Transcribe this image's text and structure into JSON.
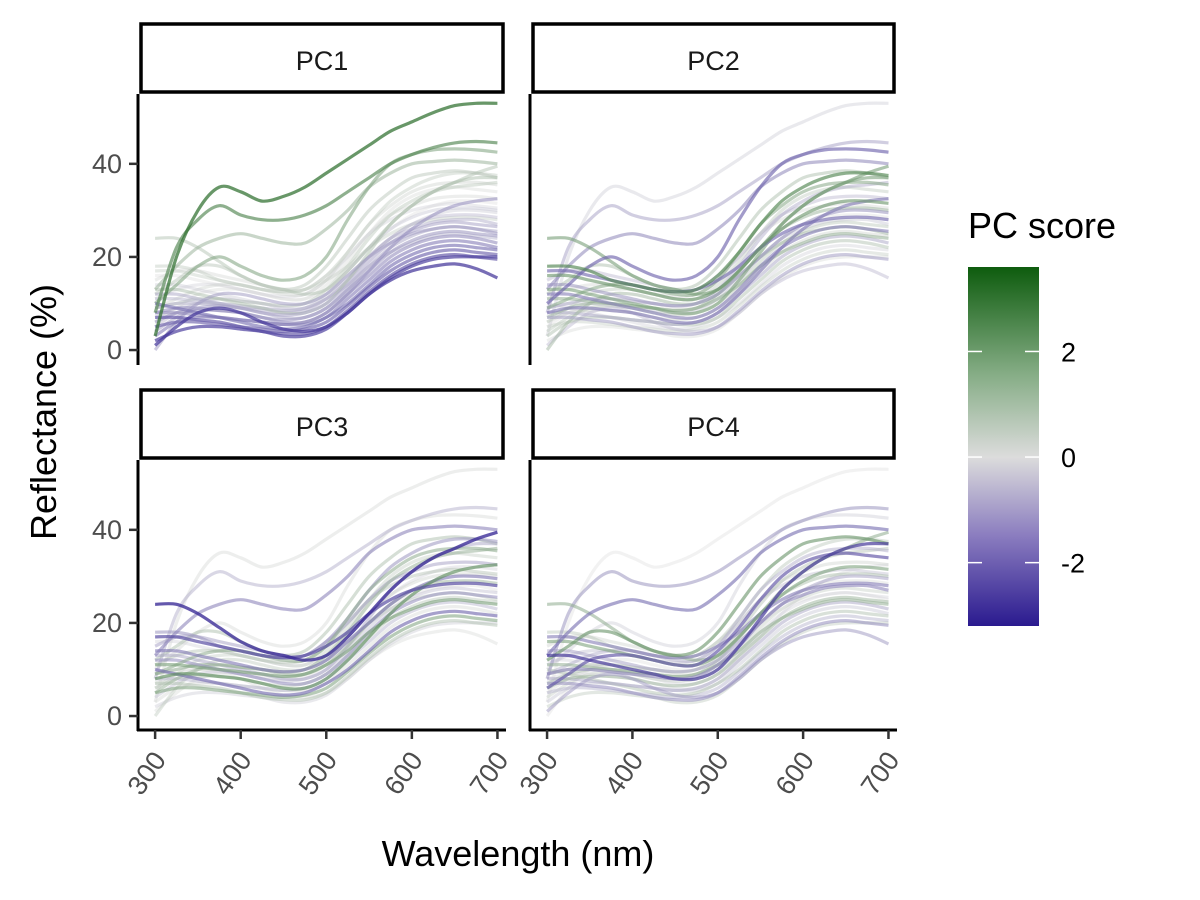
{
  "chart_data": {
    "type": "line",
    "xlabel": "Wavelength (nm)",
    "ylabel": "Reflectance (%)",
    "xlim": [
      280,
      710
    ],
    "ylim": [
      -3,
      55
    ],
    "x_ticks": [
      "300",
      "400",
      "500",
      "600",
      "700"
    ],
    "y_ticks": [
      "0",
      "20",
      "40"
    ],
    "panels": [
      {
        "label": "PC1"
      },
      {
        "label": "PC2"
      },
      {
        "label": "PC3"
      },
      {
        "label": "PC4"
      }
    ],
    "legend": {
      "title": "PC score",
      "position": "right",
      "range": [
        -3.2,
        3.6
      ],
      "ticks": [
        "2",
        "0",
        "-2"
      ],
      "colors": {
        "low": "#2a1a8f",
        "mid": "#dcdcdc",
        "high": "#0e5c0e"
      }
    },
    "wavelengths": [
      300,
      325,
      350,
      375,
      400,
      425,
      450,
      475,
      500,
      525,
      550,
      575,
      600,
      625,
      650,
      675,
      700
    ],
    "curves": [
      {
        "y": [
          3,
          20,
          30,
          35,
          34,
          32,
          33,
          35,
          38,
          41,
          44,
          47,
          49,
          51,
          52.5,
          53,
          53
        ],
        "scores": [
          3.0,
          -0.3,
          0.2,
          0.0
        ]
      },
      {
        "y": [
          8,
          22,
          28,
          31,
          29,
          28,
          28,
          29,
          31,
          34,
          37,
          40,
          42,
          43.5,
          44.5,
          44.8,
          44.5
        ],
        "scores": [
          2.4,
          -1.0,
          -0.8,
          -1.2
        ]
      },
      {
        "y": [
          10,
          14,
          18,
          20,
          18,
          16,
          15,
          16,
          20,
          28,
          35,
          40,
          42,
          43,
          43.2,
          43,
          42.5
        ],
        "scores": [
          1.6,
          -2.0,
          0.2,
          -0.3
        ]
      },
      {
        "y": [
          13,
          18,
          22,
          24,
          25,
          24,
          23,
          23,
          26,
          30,
          35,
          38,
          40,
          40.5,
          40.8,
          40.5,
          40
        ],
        "scores": [
          1.2,
          -1.4,
          -1.5,
          -1.8
        ]
      },
      {
        "y": [
          24,
          24,
          22,
          19,
          16,
          14,
          13,
          12,
          13,
          17,
          22,
          27,
          31,
          34,
          36,
          38,
          39.5
        ],
        "scores": [
          0.8,
          1.8,
          -3.0,
          1.4
        ]
      },
      {
        "y": [
          18,
          18,
          17,
          15,
          14,
          13,
          12.5,
          13,
          16,
          21,
          27,
          32,
          35,
          37,
          38,
          38,
          37.5
        ],
        "scores": [
          0.5,
          2.4,
          -1.2,
          0.6
        ]
      },
      {
        "y": [
          12,
          15,
          18,
          18,
          16,
          14,
          13,
          14,
          18,
          24,
          30,
          34,
          37,
          38,
          38.5,
          38,
          37
        ],
        "scores": [
          0.7,
          0.9,
          0.9,
          2.0
        ]
      },
      {
        "y": [
          9,
          11,
          13,
          14,
          14,
          13,
          12,
          12,
          15,
          21,
          27,
          31,
          34,
          35.5,
          36,
          36,
          35.5
        ],
        "scores": [
          0.3,
          1.5,
          1.4,
          -0.8
        ]
      },
      {
        "y": [
          6,
          9,
          12,
          13,
          13,
          12,
          11,
          11,
          14,
          19,
          25,
          30,
          33,
          34.5,
          35,
          34.5,
          34
        ],
        "scores": [
          0.1,
          0.5,
          0.4,
          -2.2
        ]
      },
      {
        "y": [
          15,
          17,
          17,
          16,
          15,
          14,
          13,
          13,
          16,
          20,
          25,
          29,
          31,
          32.5,
          33,
          33,
          32.5
        ],
        "scores": [
          0.2,
          -0.6,
          -1.0,
          0.3
        ]
      },
      {
        "y": [
          11,
          13,
          14,
          14,
          13,
          12,
          11.5,
          12,
          15,
          20,
          25,
          28,
          30,
          31,
          31.5,
          31,
          30.5
        ],
        "scores": [
          -0.2,
          0.2,
          0.7,
          -0.5
        ]
      },
      {
        "y": [
          7,
          9,
          10,
          10,
          9.5,
          9,
          8.5,
          9,
          12,
          17,
          22,
          26,
          28.5,
          30,
          30.5,
          30.5,
          30
        ],
        "scores": [
          -0.4,
          1.1,
          0.3,
          0.9
        ]
      },
      {
        "y": [
          14,
          14,
          13,
          12,
          11,
          10,
          9.5,
          10,
          12,
          16,
          20,
          24,
          27,
          29,
          30,
          30,
          29.5
        ],
        "scores": [
          -0.3,
          -1.2,
          -1.7,
          -1.0
        ]
      },
      {
        "y": [
          5,
          8,
          10,
          11,
          10.5,
          10,
          9,
          9,
          11,
          15,
          20,
          24,
          27,
          28.5,
          29,
          29,
          28.5
        ],
        "scores": [
          -0.6,
          0.0,
          1.1,
          0.1
        ]
      },
      {
        "y": [
          9,
          10,
          10,
          9.5,
          9,
          8.5,
          8,
          8.5,
          11,
          15,
          20,
          24,
          26,
          27.5,
          28,
          28,
          27
        ],
        "scores": [
          -0.8,
          -0.4,
          0.0,
          -1.5
        ]
      },
      {
        "y": [
          4,
          7,
          9,
          9.5,
          9,
          8,
          7.5,
          8,
          10,
          14,
          19,
          23,
          25.5,
          27,
          27.5,
          27,
          26.5
        ],
        "scores": [
          -1.0,
          0.6,
          -0.5,
          0.4
        ]
      },
      {
        "y": [
          12,
          12,
          11,
          10,
          9,
          8,
          7,
          7,
          9,
          13,
          18,
          22,
          24.5,
          26,
          26.5,
          26,
          25.5
        ],
        "scores": [
          -0.9,
          -1.6,
          -1.3,
          -0.2
        ]
      },
      {
        "y": [
          6,
          8,
          8.5,
          8.5,
          8,
          7,
          6.5,
          7,
          9,
          13,
          17,
          21,
          23.5,
          25,
          25.5,
          25,
          24.5
        ],
        "scores": [
          -1.2,
          0.3,
          0.6,
          1.1
        ]
      },
      {
        "y": [
          8,
          8,
          7.5,
          7,
          6.5,
          6,
          5.5,
          6,
          8,
          12,
          16,
          20,
          22.5,
          24,
          24.5,
          24,
          23
        ],
        "scores": [
          -1.4,
          -0.9,
          -0.7,
          -0.9
        ]
      },
      {
        "y": [
          3,
          6,
          7,
          7,
          6.5,
          6,
          5.5,
          5.5,
          7,
          11,
          15,
          19,
          21.5,
          23,
          23.5,
          23,
          22
        ],
        "scores": [
          -1.6,
          0.8,
          0.2,
          -0.4
        ]
      },
      {
        "y": [
          10,
          9,
          8,
          7,
          6,
          5,
          4.5,
          5,
          7,
          10,
          14,
          18,
          20.5,
          22,
          22.5,
          22,
          21.5
        ],
        "scores": [
          -1.8,
          -0.2,
          -1.9,
          0.8
        ]
      },
      {
        "y": [
          5,
          6,
          6,
          5.5,
          5,
          4.5,
          4,
          4.5,
          6,
          9.5,
          13.5,
          17,
          19.5,
          21,
          21.5,
          21,
          20.5
        ],
        "scores": [
          -2.0,
          0.4,
          1.6,
          -0.7
        ]
      },
      {
        "y": [
          7,
          7,
          6.5,
          6,
          5,
          4,
          3.5,
          3.5,
          5,
          8.5,
          12.5,
          16,
          18.5,
          20,
          20.5,
          20,
          19.5
        ],
        "scores": [
          -2.2,
          -1.1,
          0.8,
          -1.3
        ]
      },
      {
        "y": [
          2,
          4,
          5,
          5,
          4.5,
          4,
          3,
          3,
          4.5,
          8,
          12,
          15.5,
          18,
          19.5,
          20,
          20,
          20
        ],
        "scores": [
          -2.5,
          0.1,
          -0.3,
          0.5
        ]
      },
      {
        "y": [
          1,
          5,
          8,
          9,
          8,
          6,
          4.5,
          4,
          5,
          8,
          12,
          15,
          17,
          18,
          18.5,
          17.5,
          15.5
        ],
        "scores": [
          -2.7,
          -0.6,
          0.1,
          -1.1
        ]
      },
      {
        "y": [
          16,
          16,
          15,
          14,
          13,
          12,
          11,
          11,
          13,
          17,
          22,
          26,
          29,
          31,
          32,
          32,
          31.5
        ],
        "scores": [
          0.0,
          2.0,
          -0.2,
          1.7
        ]
      },
      {
        "y": [
          8,
          9,
          9,
          8.5,
          8,
          7,
          6,
          6,
          8,
          12,
          17,
          22,
          26,
          29,
          31,
          32,
          32.5
        ],
        "scores": [
          -1.3,
          -1.7,
          2.2,
          -0.1
        ]
      },
      {
        "y": [
          11,
          11,
          10.5,
          10,
          9.5,
          9,
          8.5,
          9,
          11,
          14,
          18,
          21,
          23,
          24.5,
          25,
          24.5,
          24
        ],
        "scores": [
          -0.7,
          1.3,
          1.8,
          1.3
        ]
      },
      {
        "y": [
          17,
          17,
          16,
          15,
          14,
          13,
          12.5,
          13,
          15,
          18,
          22,
          25,
          27,
          28,
          28.5,
          28.5,
          28
        ],
        "scores": [
          0.4,
          -1.9,
          -2.4,
          -1.6
        ]
      },
      {
        "y": [
          0,
          6,
          10,
          12,
          12,
          11,
          10,
          10,
          12,
          16,
          20,
          23,
          25,
          26,
          26.5,
          26,
          25
        ],
        "scores": [
          -1.1,
          1.0,
          0.5,
          0.0
        ]
      },
      {
        "y": [
          13,
          13,
          12,
          11,
          10,
          9,
          8,
          8,
          10,
          15,
          21,
          27,
          31,
          34,
          36,
          37,
          37
        ],
        "scores": [
          0.9,
          1.7,
          -0.9,
          -2.6
        ]
      },
      {
        "y": [
          9,
          10,
          11,
          11,
          10.5,
          10,
          9.5,
          10,
          13,
          18,
          24,
          29,
          32,
          34,
          35,
          35.5,
          36
        ],
        "scores": [
          0.6,
          -0.8,
          1.2,
          0.7
        ]
      }
    ]
  }
}
